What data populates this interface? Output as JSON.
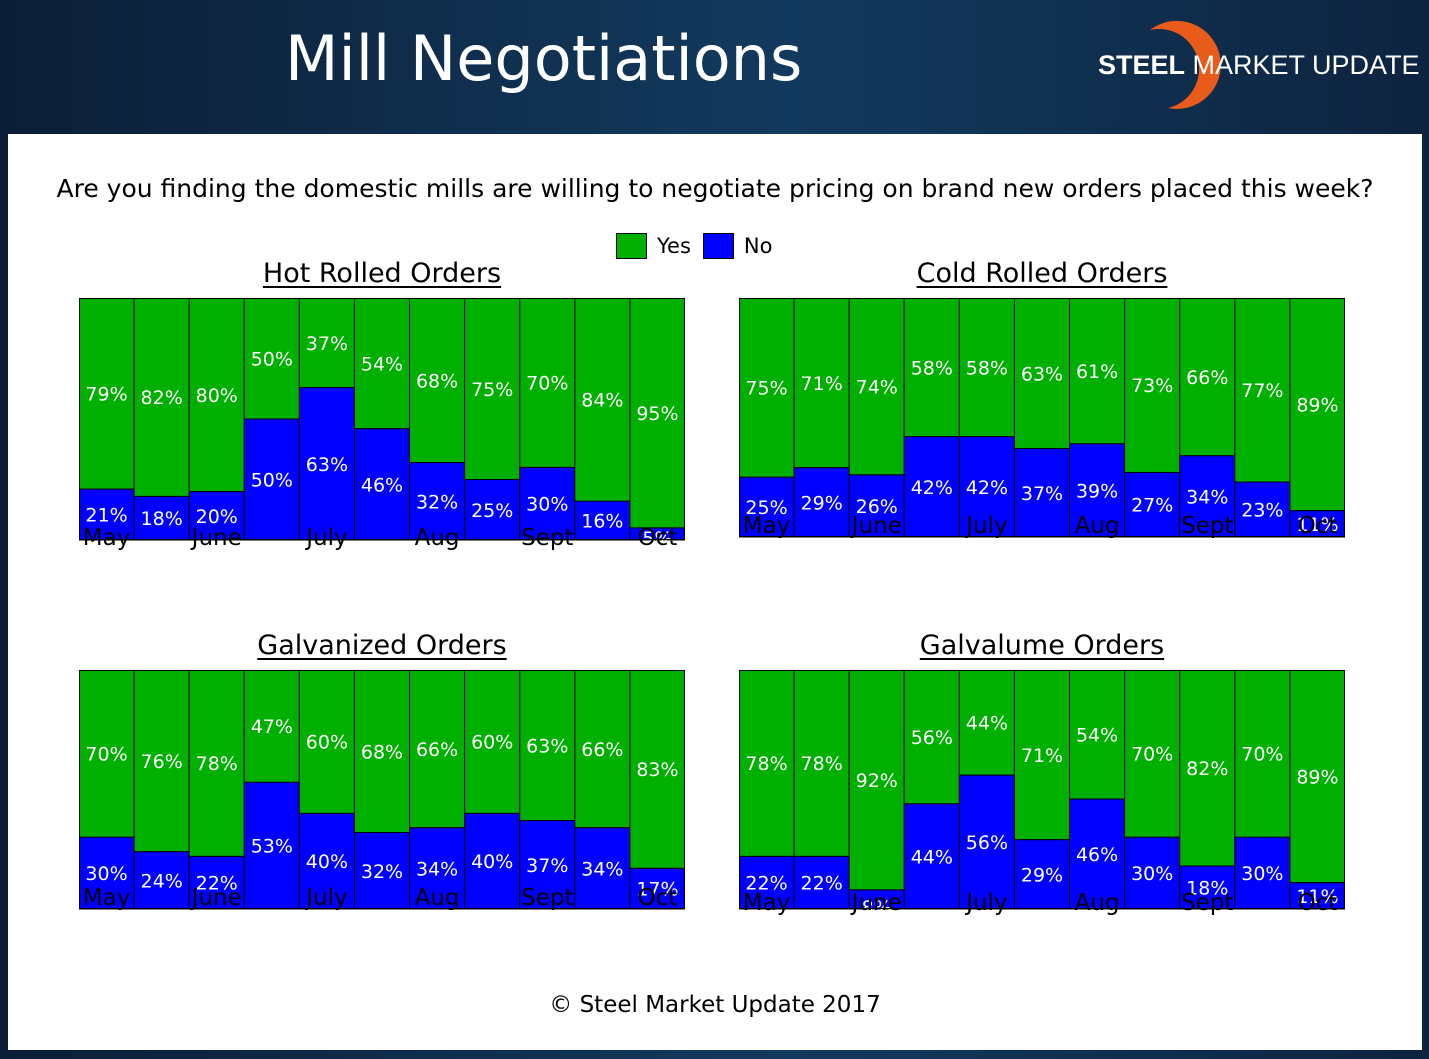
{
  "header": {
    "title": "Mill Negotiations",
    "logo": {
      "bold": "STEEL",
      "regular": "MARKET UPDATE"
    }
  },
  "question": "Are you finding the domestic mills are willing to negotiate pricing on brand new orders placed this week?",
  "legend": [
    {
      "label": "Yes",
      "color": "#00b000"
    },
    {
      "label": "No",
      "color": "#0000ff"
    }
  ],
  "footer": {
    "copyright": "© Steel Market Update 2017"
  },
  "chart_data": [
    {
      "type": "bar",
      "stacked": "100%",
      "title": "Hot Rolled Orders",
      "month_labels": [
        "May",
        "June",
        "July",
        "Aug",
        "Sept",
        "Oct"
      ],
      "series": [
        {
          "name": "Yes",
          "color": "#00b000",
          "values": [
            79,
            82,
            80,
            50,
            37,
            54,
            68,
            75,
            70,
            84,
            95
          ]
        },
        {
          "name": "No",
          "color": "#0000ff",
          "values": [
            21,
            18,
            20,
            50,
            63,
            46,
            32,
            25,
            30,
            16,
            5
          ]
        }
      ]
    },
    {
      "type": "bar",
      "stacked": "100%",
      "title": "Cold Rolled Orders",
      "month_labels": [
        "May",
        "June",
        "July",
        "Aug",
        "Sept",
        "Oct"
      ],
      "series": [
        {
          "name": "Yes",
          "color": "#00b000",
          "values": [
            75,
            71,
            74,
            58,
            58,
            63,
            61,
            73,
            66,
            77,
            89
          ]
        },
        {
          "name": "No",
          "color": "#0000ff",
          "values": [
            25,
            29,
            26,
            42,
            42,
            37,
            39,
            27,
            34,
            23,
            11
          ]
        }
      ]
    },
    {
      "type": "bar",
      "stacked": "100%",
      "title": "Galvanized Orders",
      "month_labels": [
        "May",
        "June",
        "July",
        "Aug",
        "Sept",
        "Oct"
      ],
      "series": [
        {
          "name": "Yes",
          "color": "#00b000",
          "values": [
            70,
            76,
            78,
            47,
            60,
            68,
            66,
            60,
            63,
            66,
            83
          ]
        },
        {
          "name": "No",
          "color": "#0000ff",
          "values": [
            30,
            24,
            22,
            53,
            40,
            32,
            34,
            40,
            37,
            34,
            17
          ]
        }
      ]
    },
    {
      "type": "bar",
      "stacked": "100%",
      "title": "Galvalume Orders",
      "month_labels": [
        "May",
        "June",
        "July",
        "Aug",
        "Sept",
        "Oct"
      ],
      "series": [
        {
          "name": "Yes",
          "color": "#00b000",
          "values": [
            78,
            78,
            92,
            56,
            44,
            71,
            54,
            70,
            82,
            70,
            89
          ]
        },
        {
          "name": "No",
          "color": "#0000ff",
          "values": [
            22,
            22,
            8,
            44,
            56,
            29,
            46,
            30,
            18,
            30,
            11
          ]
        }
      ]
    }
  ]
}
